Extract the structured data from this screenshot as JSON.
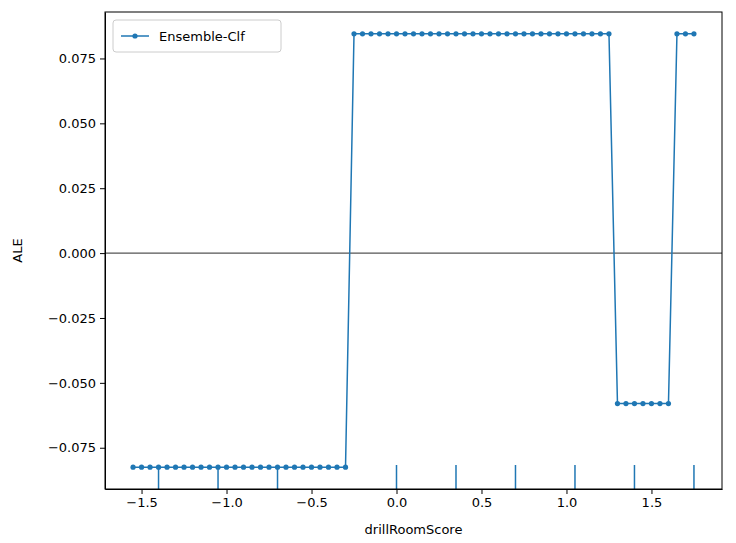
{
  "chart_data": {
    "type": "line",
    "xlabel": "drillRoomScore",
    "ylabel": "ALE",
    "x": [
      -1.55,
      -1.5,
      -1.45,
      -1.4,
      -1.35,
      -1.3,
      -1.25,
      -1.2,
      -1.15,
      -1.1,
      -1.05,
      -1.0,
      -0.95,
      -0.9,
      -0.85,
      -0.8,
      -0.75,
      -0.7,
      -0.65,
      -0.6,
      -0.55,
      -0.5,
      -0.45,
      -0.4,
      -0.35,
      -0.3,
      -0.25,
      -0.2,
      -0.15,
      -0.1,
      -0.05,
      0.0,
      0.05,
      0.1,
      0.15,
      0.2,
      0.25,
      0.3,
      0.35,
      0.4,
      0.45,
      0.5,
      0.55,
      0.6,
      0.65,
      0.7,
      0.75,
      0.8,
      0.85,
      0.9,
      0.95,
      1.0,
      1.05,
      1.1,
      1.15,
      1.2,
      1.25,
      1.3,
      1.35,
      1.4,
      1.45,
      1.5,
      1.55,
      1.6,
      1.65,
      1.7,
      1.75
    ],
    "series": [
      {
        "name": "Ensemble-Clf",
        "color": "#1f77b4",
        "marker": "circle",
        "line_style": "solid",
        "values": [
          -0.0825,
          -0.0825,
          -0.0825,
          -0.0825,
          -0.0825,
          -0.0825,
          -0.0825,
          -0.0825,
          -0.0825,
          -0.0825,
          -0.0825,
          -0.0825,
          -0.0825,
          -0.0825,
          -0.0825,
          -0.0825,
          -0.0825,
          -0.0825,
          -0.0825,
          -0.0825,
          -0.0825,
          -0.0825,
          -0.0825,
          -0.0825,
          -0.0825,
          -0.0825,
          0.0845,
          0.0845,
          0.0845,
          0.0845,
          0.0845,
          0.0845,
          0.0845,
          0.0845,
          0.0845,
          0.0845,
          0.0845,
          0.0845,
          0.0845,
          0.0845,
          0.0845,
          0.0845,
          0.0845,
          0.0845,
          0.0845,
          0.0845,
          0.0845,
          0.0845,
          0.0845,
          0.0845,
          0.0845,
          0.0845,
          0.0845,
          0.0845,
          0.0845,
          0.0845,
          0.0845,
          -0.058,
          -0.058,
          -0.058,
          -0.058,
          -0.058,
          -0.058,
          -0.058,
          0.0845,
          0.0845,
          0.0845
        ]
      }
    ],
    "rug": [
      -1.4,
      -1.05,
      -0.7,
      0.0,
      0.35,
      0.7,
      1.05,
      1.4,
      1.75
    ],
    "hline": 0,
    "xlim": [
      -1.715,
      1.915
    ],
    "ylim": [
      -0.0909,
      0.0929
    ],
    "xticks": [
      {
        "value": -1.5,
        "label": "−1.5"
      },
      {
        "value": -1.0,
        "label": "−1.0"
      },
      {
        "value": -0.5,
        "label": "−0.5"
      },
      {
        "value": 0.0,
        "label": "0.0"
      },
      {
        "value": 0.5,
        "label": "0.5"
      },
      {
        "value": 1.0,
        "label": "1.0"
      },
      {
        "value": 1.5,
        "label": "1.5"
      }
    ],
    "yticks": [
      {
        "value": -0.075,
        "label": "−0.075"
      },
      {
        "value": -0.05,
        "label": "−0.050"
      },
      {
        "value": -0.025,
        "label": "−0.025"
      },
      {
        "value": 0.0,
        "label": "0.000"
      },
      {
        "value": 0.025,
        "label": "0.025"
      },
      {
        "value": 0.05,
        "label": "0.050"
      },
      {
        "value": 0.075,
        "label": "0.075"
      }
    ],
    "legend": "upper left",
    "grid": false
  }
}
